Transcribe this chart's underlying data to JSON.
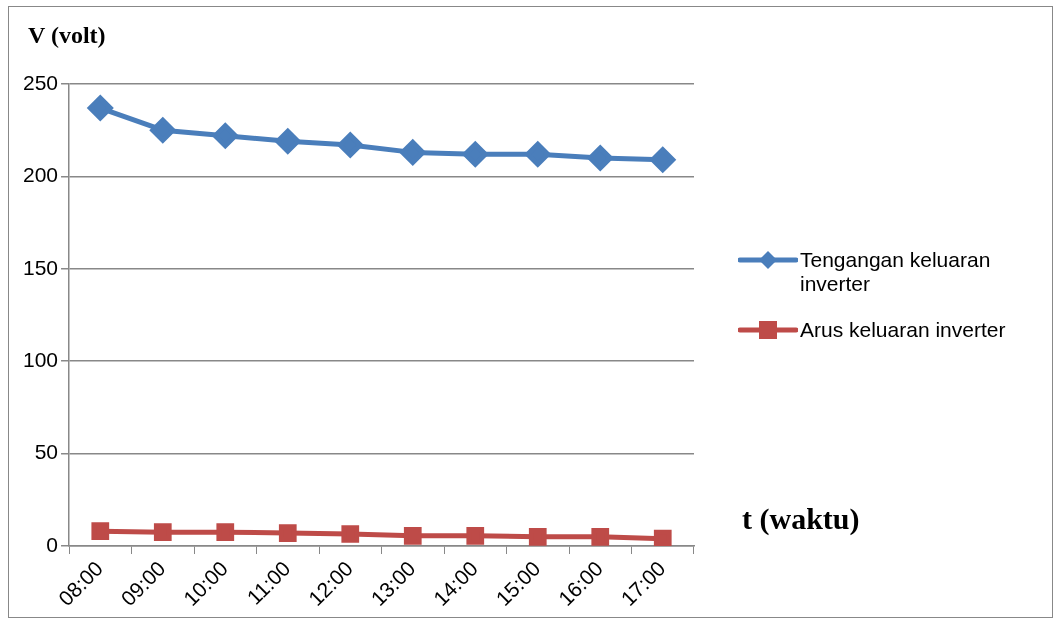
{
  "chart_data": {
    "type": "line",
    "xlabel": "t (waktu)",
    "ylabel": "V (volt)",
    "categories": [
      "08:00",
      "09:00",
      "10:00",
      "11:00",
      "12:00",
      "13:00",
      "14:00",
      "15:00",
      "16:00",
      "17:00"
    ],
    "series": [
      {
        "name": "Tengangan keluaran inverter",
        "color": "#4a7ebb",
        "marker": "diamond",
        "values": [
          237,
          225,
          222,
          219,
          217,
          213,
          212,
          212,
          210,
          209
        ]
      },
      {
        "name": "Arus keluaran inverter",
        "color": "#be4b48",
        "marker": "square",
        "values": [
          8,
          7.5,
          7.5,
          7,
          6.5,
          5.5,
          5.5,
          5,
          5,
          4
        ]
      }
    ],
    "ylim": [
      0,
      250
    ],
    "yticks": [
      0,
      50,
      100,
      150,
      200,
      250
    ],
    "grid": "y",
    "legend": "right",
    "line_style": "solid"
  }
}
